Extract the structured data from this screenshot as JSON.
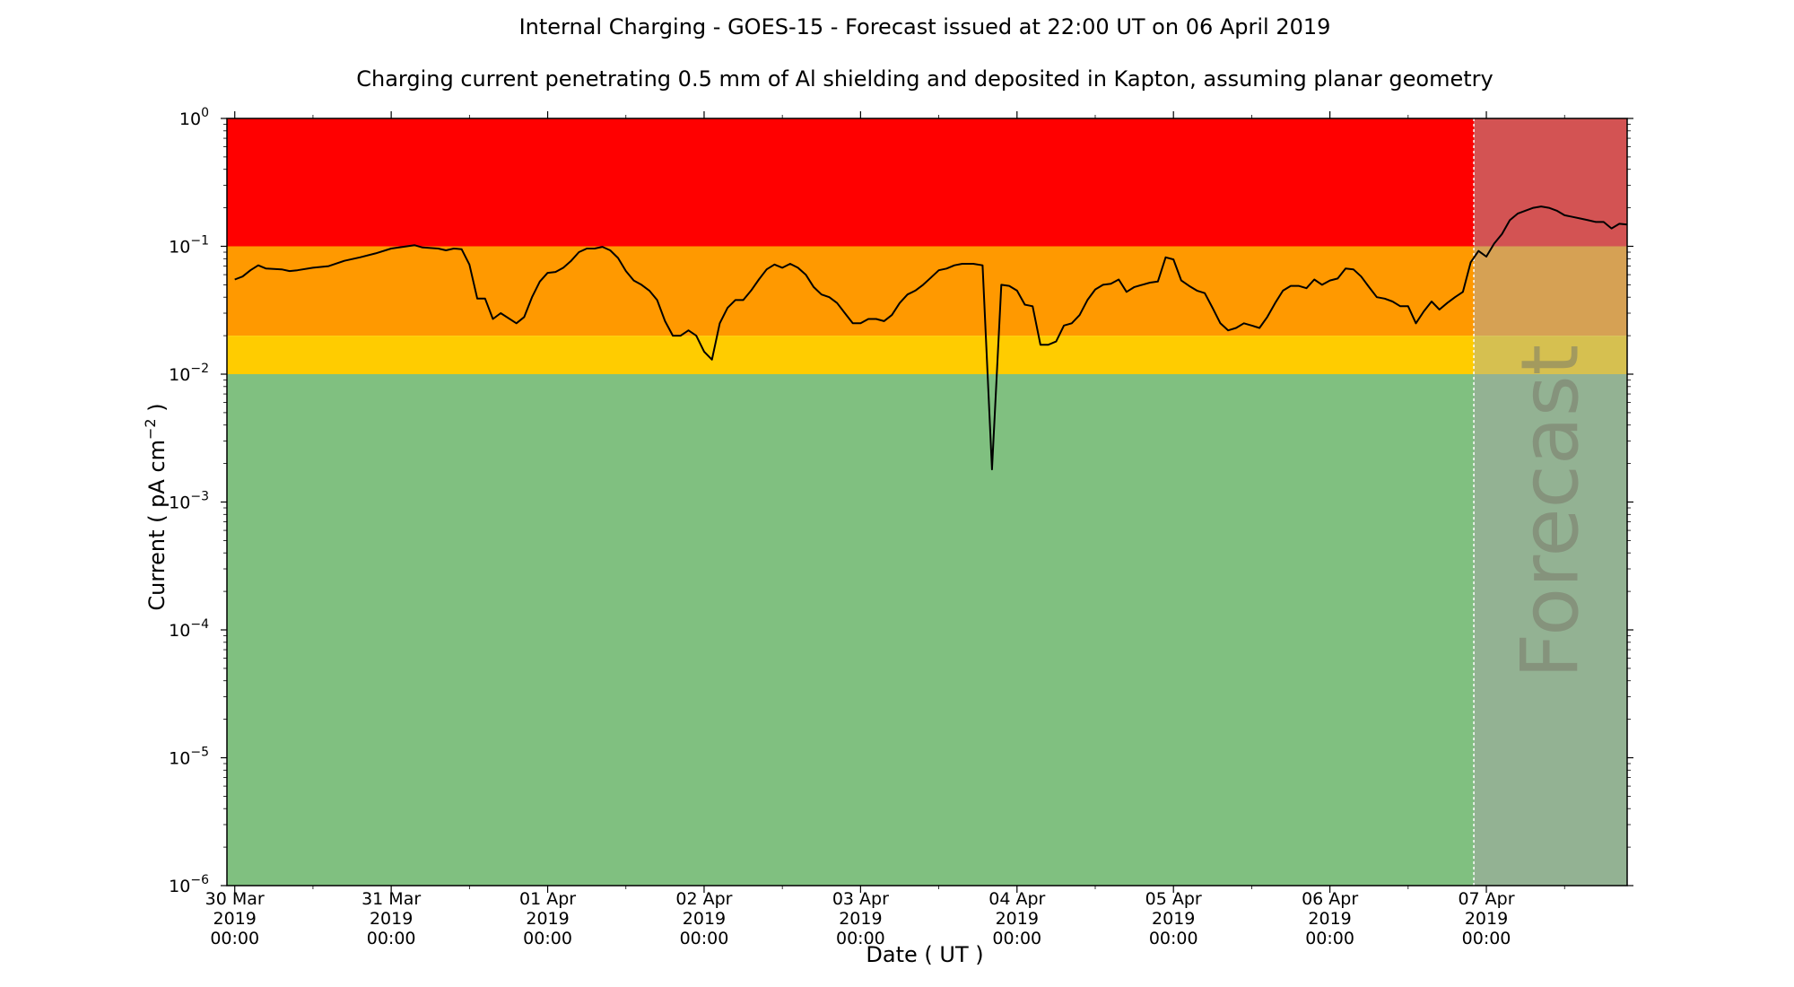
{
  "chart_data": {
    "type": "line",
    "title": "Internal Charging - GOES-15 - Forecast issued at 22:00 UT on 06 April 2019",
    "subtitle": "Charging current penetrating 0.5 mm of Al shielding and deposited in Kapton, assuming planar geometry",
    "xlabel": "Date ( UT )",
    "ylabel": "Current ( pA cm",
    "ylabel_exp": "−2",
    "ylabel_end": " )",
    "yscale": "log",
    "ylim": [
      1e-06,
      1
    ],
    "xlim_days": [
      -0.05,
      8.9
    ],
    "forecast_start_day": 7.92,
    "forecast_label": "Forecast",
    "y_ticks": [
      {
        "value": 1e-06,
        "base": "10",
        "exp": "−6"
      },
      {
        "value": 1e-05,
        "base": "10",
        "exp": "−5"
      },
      {
        "value": 0.0001,
        "base": "10",
        "exp": "−4"
      },
      {
        "value": 0.001,
        "base": "10",
        "exp": "−3"
      },
      {
        "value": 0.01,
        "base": "10",
        "exp": "−2"
      },
      {
        "value": 0.1,
        "base": "10",
        "exp": "−1"
      },
      {
        "value": 1,
        "base": "10",
        "exp": "0"
      }
    ],
    "x_ticks": [
      {
        "day": 0,
        "lines": [
          "30 Mar",
          "2019",
          "00:00"
        ]
      },
      {
        "day": 1,
        "lines": [
          "31 Mar",
          "2019",
          "00:00"
        ]
      },
      {
        "day": 2,
        "lines": [
          "01 Apr",
          "2019",
          "00:00"
        ]
      },
      {
        "day": 3,
        "lines": [
          "02 Apr",
          "2019",
          "00:00"
        ]
      },
      {
        "day": 4,
        "lines": [
          "03 Apr",
          "2019",
          "00:00"
        ]
      },
      {
        "day": 5,
        "lines": [
          "04 Apr",
          "2019",
          "00:00"
        ]
      },
      {
        "day": 6,
        "lines": [
          "05 Apr",
          "2019",
          "00:00"
        ]
      },
      {
        "day": 7,
        "lines": [
          "06 Apr",
          "2019",
          "00:00"
        ]
      },
      {
        "day": 8,
        "lines": [
          "07 Apr",
          "2019",
          "00:00"
        ]
      }
    ],
    "bands": [
      {
        "from": 0.1,
        "to": 1,
        "color": "#ff0000",
        "forecast_color": "#d35353"
      },
      {
        "from": 0.02,
        "to": 0.1,
        "color": "#ff9900",
        "forecast_color": "#d6a154"
      },
      {
        "from": 0.01,
        "to": 0.02,
        "color": "#ffcc00",
        "forecast_color": "#d6c050"
      },
      {
        "from": 1e-06,
        "to": 0.01,
        "color": "#80c080",
        "forecast_color": "#93b293"
      }
    ],
    "series": [
      {
        "color": "#000000",
        "points": [
          [
            0,
            0.055
          ],
          [
            0.05,
            0.058
          ],
          [
            0.1,
            0.065
          ],
          [
            0.15,
            0.071
          ],
          [
            0.2,
            0.067
          ],
          [
            0.3,
            0.066
          ],
          [
            0.35,
            0.064
          ],
          [
            0.4,
            0.065
          ],
          [
            0.5,
            0.068
          ],
          [
            0.6,
            0.07
          ],
          [
            0.7,
            0.077
          ],
          [
            0.8,
            0.082
          ],
          [
            0.9,
            0.088
          ],
          [
            1.0,
            0.096
          ],
          [
            1.1,
            0.1
          ],
          [
            1.15,
            0.102
          ],
          [
            1.2,
            0.098
          ],
          [
            1.3,
            0.096
          ],
          [
            1.35,
            0.093
          ],
          [
            1.4,
            0.096
          ],
          [
            1.45,
            0.095
          ],
          [
            1.5,
            0.072
          ],
          [
            1.55,
            0.039
          ],
          [
            1.6,
            0.039
          ],
          [
            1.65,
            0.027
          ],
          [
            1.7,
            0.03
          ],
          [
            1.8,
            0.025
          ],
          [
            1.85,
            0.028
          ],
          [
            1.9,
            0.04
          ],
          [
            1.95,
            0.053
          ],
          [
            2.0,
            0.062
          ],
          [
            2.05,
            0.063
          ],
          [
            2.1,
            0.068
          ],
          [
            2.15,
            0.077
          ],
          [
            2.2,
            0.09
          ],
          [
            2.25,
            0.096
          ],
          [
            2.3,
            0.096
          ],
          [
            2.35,
            0.099
          ],
          [
            2.4,
            0.093
          ],
          [
            2.45,
            0.081
          ],
          [
            2.5,
            0.064
          ],
          [
            2.55,
            0.054
          ],
          [
            2.6,
            0.05
          ],
          [
            2.65,
            0.045
          ],
          [
            2.7,
            0.038
          ],
          [
            2.75,
            0.026
          ],
          [
            2.8,
            0.02
          ],
          [
            2.85,
            0.02
          ],
          [
            2.9,
            0.022
          ],
          [
            2.95,
            0.02
          ],
          [
            3.0,
            0.015
          ],
          [
            3.05,
            0.013
          ],
          [
            3.1,
            0.025
          ],
          [
            3.15,
            0.033
          ],
          [
            3.2,
            0.038
          ],
          [
            3.25,
            0.038
          ],
          [
            3.3,
            0.045
          ],
          [
            3.35,
            0.055
          ],
          [
            3.4,
            0.066
          ],
          [
            3.45,
            0.072
          ],
          [
            3.5,
            0.068
          ],
          [
            3.55,
            0.073
          ],
          [
            3.6,
            0.068
          ],
          [
            3.65,
            0.06
          ],
          [
            3.7,
            0.048
          ],
          [
            3.75,
            0.042
          ],
          [
            3.8,
            0.04
          ],
          [
            3.85,
            0.036
          ],
          [
            3.9,
            0.03
          ],
          [
            3.95,
            0.025
          ],
          [
            4.0,
            0.025
          ],
          [
            4.05,
            0.027
          ],
          [
            4.1,
            0.027
          ],
          [
            4.15,
            0.026
          ],
          [
            4.2,
            0.029
          ],
          [
            4.25,
            0.036
          ],
          [
            4.3,
            0.042
          ],
          [
            4.35,
            0.045
          ],
          [
            4.4,
            0.05
          ],
          [
            4.45,
            0.057
          ],
          [
            4.5,
            0.065
          ],
          [
            4.55,
            0.067
          ],
          [
            4.6,
            0.071
          ],
          [
            4.65,
            0.073
          ],
          [
            4.72,
            0.073
          ],
          [
            4.78,
            0.071
          ],
          [
            4.84,
            0.0018
          ],
          [
            4.9,
            0.05
          ],
          [
            4.95,
            0.049
          ],
          [
            5.0,
            0.045
          ],
          [
            5.05,
            0.035
          ],
          [
            5.1,
            0.034
          ],
          [
            5.15,
            0.017
          ],
          [
            5.2,
            0.017
          ],
          [
            5.25,
            0.018
          ],
          [
            5.3,
            0.024
          ],
          [
            5.35,
            0.025
          ],
          [
            5.4,
            0.029
          ],
          [
            5.45,
            0.038
          ],
          [
            5.5,
            0.046
          ],
          [
            5.55,
            0.05
          ],
          [
            5.6,
            0.051
          ],
          [
            5.65,
            0.055
          ],
          [
            5.7,
            0.044
          ],
          [
            5.75,
            0.048
          ],
          [
            5.8,
            0.05
          ],
          [
            5.85,
            0.052
          ],
          [
            5.9,
            0.053
          ],
          [
            5.95,
            0.082
          ],
          [
            6.0,
            0.079
          ],
          [
            6.05,
            0.054
          ],
          [
            6.1,
            0.049
          ],
          [
            6.15,
            0.045
          ],
          [
            6.2,
            0.043
          ],
          [
            6.25,
            0.033
          ],
          [
            6.3,
            0.025
          ],
          [
            6.35,
            0.022
          ],
          [
            6.4,
            0.023
          ],
          [
            6.45,
            0.025
          ],
          [
            6.5,
            0.024
          ],
          [
            6.55,
            0.023
          ],
          [
            6.6,
            0.028
          ],
          [
            6.65,
            0.036
          ],
          [
            6.7,
            0.045
          ],
          [
            6.75,
            0.049
          ],
          [
            6.8,
            0.049
          ],
          [
            6.85,
            0.047
          ],
          [
            6.9,
            0.055
          ],
          [
            6.95,
            0.05
          ],
          [
            7.0,
            0.054
          ],
          [
            7.05,
            0.056
          ],
          [
            7.1,
            0.067
          ],
          [
            7.15,
            0.066
          ],
          [
            7.2,
            0.058
          ],
          [
            7.25,
            0.048
          ],
          [
            7.3,
            0.04
          ],
          [
            7.35,
            0.039
          ],
          [
            7.4,
            0.037
          ],
          [
            7.45,
            0.034
          ],
          [
            7.5,
            0.034
          ],
          [
            7.55,
            0.025
          ],
          [
            7.6,
            0.031
          ],
          [
            7.65,
            0.037
          ],
          [
            7.7,
            0.032
          ],
          [
            7.75,
            0.036
          ],
          [
            7.8,
            0.04
          ],
          [
            7.85,
            0.044
          ],
          [
            7.9,
            0.075
          ],
          [
            7.95,
            0.092
          ],
          [
            8.0,
            0.083
          ],
          [
            8.05,
            0.105
          ],
          [
            8.1,
            0.125
          ],
          [
            8.15,
            0.16
          ],
          [
            8.2,
            0.18
          ],
          [
            8.25,
            0.19
          ],
          [
            8.3,
            0.2
          ],
          [
            8.35,
            0.205
          ],
          [
            8.4,
            0.2
          ],
          [
            8.45,
            0.19
          ],
          [
            8.5,
            0.175
          ],
          [
            8.55,
            0.17
          ],
          [
            8.6,
            0.165
          ],
          [
            8.65,
            0.16
          ],
          [
            8.7,
            0.155
          ],
          [
            8.75,
            0.155
          ],
          [
            8.8,
            0.138
          ],
          [
            8.85,
            0.15
          ],
          [
            8.9,
            0.148
          ]
        ]
      }
    ]
  }
}
